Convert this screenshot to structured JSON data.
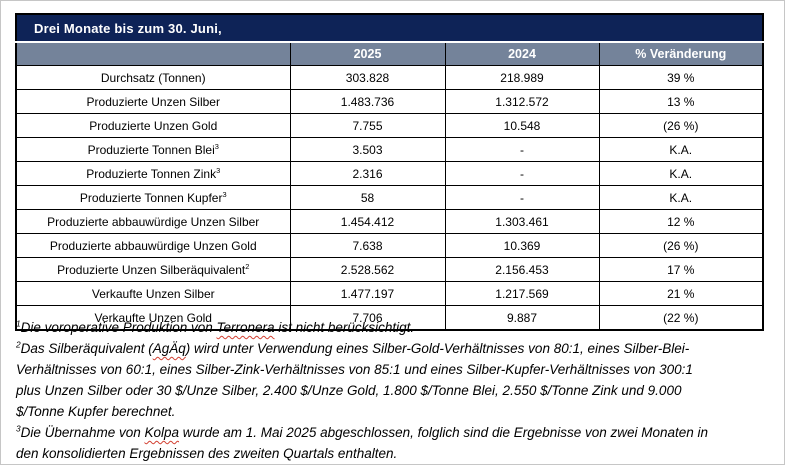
{
  "table": {
    "title": "Drei Monate bis zum 30. Juni,",
    "columns": [
      "",
      "2025",
      "2024",
      "% Veränderung"
    ],
    "rows": [
      {
        "label": "Durchsatz (Tonnen)",
        "sup": "",
        "v2025": "303.828",
        "v2024": "218.989",
        "change": "39 %"
      },
      {
        "label": "Produzierte Unzen Silber",
        "sup": "",
        "v2025": "1.483.736",
        "v2024": "1.312.572",
        "change": "13 %"
      },
      {
        "label": "Produzierte Unzen Gold",
        "sup": "",
        "v2025": "7.755",
        "v2024": "10.548",
        "change": "(26 %)"
      },
      {
        "label": "Produzierte Tonnen Blei",
        "sup": "3",
        "v2025": "3.503",
        "v2024": "-",
        "change": "K.A."
      },
      {
        "label": "Produzierte Tonnen Zink",
        "sup": "3",
        "v2025": "2.316",
        "v2024": "-",
        "change": "K.A."
      },
      {
        "label": "Produzierte Tonnen Kupfer",
        "sup": "3",
        "v2025": "58",
        "v2024": "-",
        "change": "K.A."
      },
      {
        "label": "Produzierte abbauwürdige Unzen Silber",
        "sup": "",
        "v2025": "1.454.412",
        "v2024": "1.303.461",
        "change": "12 %"
      },
      {
        "label": "Produzierte abbauwürdige Unzen Gold",
        "sup": "",
        "v2025": "7.638",
        "v2024": "10.369",
        "change": "(26 %)"
      },
      {
        "label": "Produzierte Unzen Silberäquivalent",
        "sup": "2",
        "v2025": "2.528.562",
        "v2024": "2.156.453",
        "change": "17 %"
      },
      {
        "label": "Verkaufte Unzen Silber",
        "sup": "",
        "v2025": "1.477.197",
        "v2024": "1.217.569",
        "change": "21 %"
      },
      {
        "label": "Verkaufte Unzen Gold",
        "sup": "",
        "v2025": "7.706",
        "v2024": "9.887",
        "change": "(22 %)"
      }
    ]
  },
  "footnotes": [
    {
      "sup": "1",
      "lines": [
        "Die voroperative Produktion von Terronera ist nicht berücksichtigt."
      ]
    },
    {
      "sup": "2",
      "lines": [
        "Das Silberäquivalent (AgÄq) wird unter Verwendung eines Silber-Gold-Verhältnisses von 80:1, eines Silber-Blei-",
        "Verhältnisses von 60:1, eines Silber-Zink-Verhältnisses von 85:1 und eines Silber-Kupfer-Verhältnisses von 300:1",
        "plus Unzen Silber oder 30 $/Unze Silber, 2.400 $/Unze Gold, 1.800 $/Tonne Blei, 2.550 $/Tonne Zink und 9.000",
        "$/Tonne Kupfer berechnet."
      ]
    },
    {
      "sup": "3",
      "lines": [
        "Die Übernahme von Kolpa wurde am 1. Mai 2025 abgeschlossen, folglich sind die Ergebnisse von zwei Monaten in",
        "den konsolidierten Ergebnissen des zweiten Quartals enthalten."
      ]
    }
  ],
  "spellcheck_words": [
    "Terronera",
    "AgÄq",
    "Kolpa"
  ],
  "colors": {
    "title_bar_bg": "#0E2357",
    "title_bar_text": "#FFFFFF",
    "header_row_bg": "#74839A",
    "header_row_text": "#FFFFFF",
    "table_border": "#000000",
    "body_text": "#000000",
    "spellcheck_underline": "#D23F31",
    "page_bg": "#FFFFFF"
  }
}
